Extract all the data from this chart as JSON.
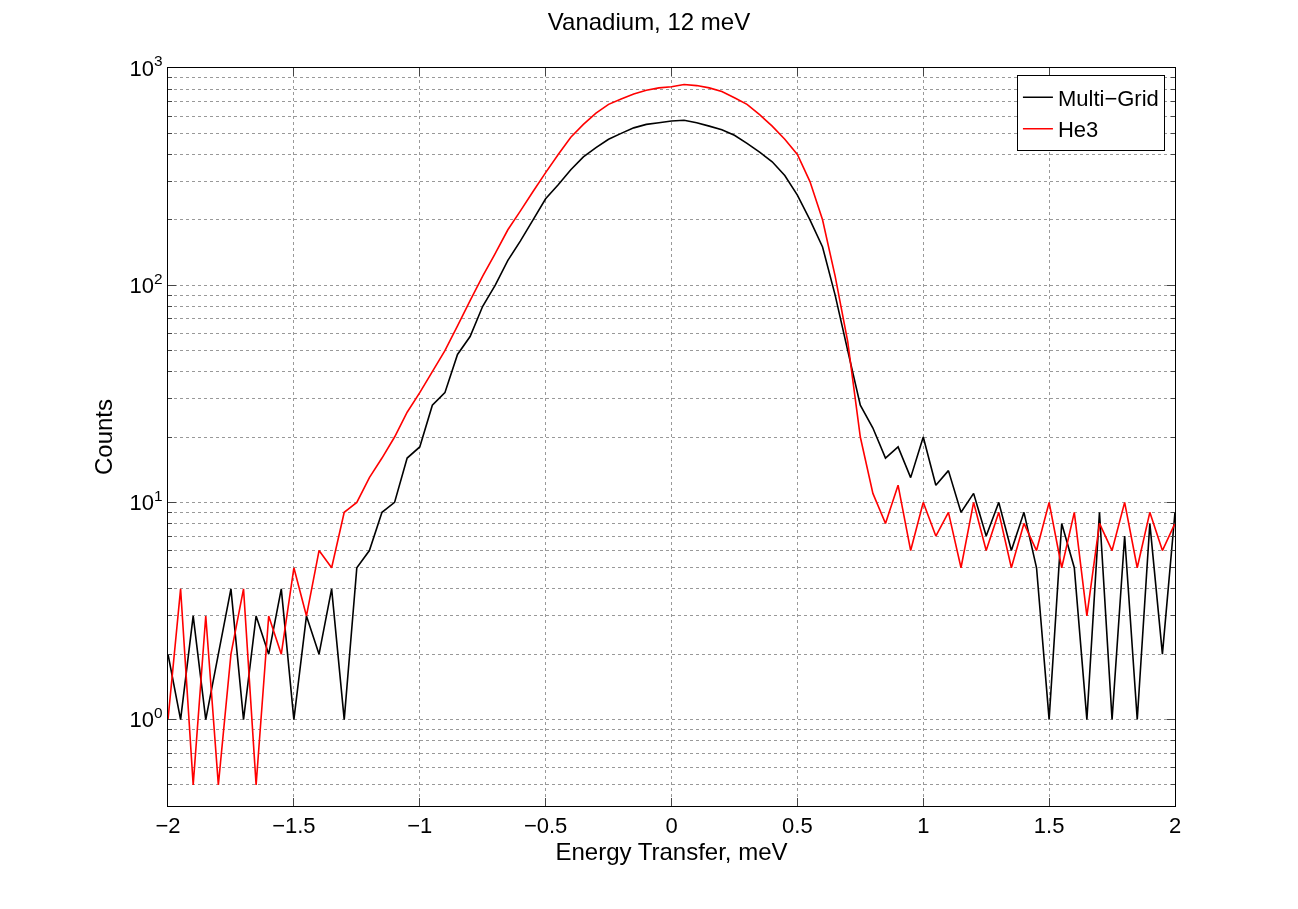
{
  "chart_data": {
    "type": "line",
    "title": "Vanadium, 12 meV",
    "xlabel": "Energy Transfer, meV",
    "ylabel": "Counts",
    "x": [
      -2.0,
      -1.95,
      -1.9,
      -1.85,
      -1.8,
      -1.75,
      -1.7,
      -1.65,
      -1.6,
      -1.55,
      -1.5,
      -1.45,
      -1.4,
      -1.35,
      -1.3,
      -1.25,
      -1.2,
      -1.15,
      -1.1,
      -1.05,
      -1.0,
      -0.95,
      -0.9,
      -0.85,
      -0.8,
      -0.75,
      -0.7,
      -0.65,
      -0.6,
      -0.55,
      -0.5,
      -0.45,
      -0.4,
      -0.35,
      -0.3,
      -0.25,
      -0.2,
      -0.15,
      -0.1,
      -0.05,
      0.0,
      0.05,
      0.1,
      0.15,
      0.2,
      0.25,
      0.3,
      0.35,
      0.4,
      0.45,
      0.5,
      0.55,
      0.6,
      0.65,
      0.7,
      0.75,
      0.8,
      0.85,
      0.9,
      0.95,
      1.0,
      1.05,
      1.1,
      1.15,
      1.2,
      1.25,
      1.3,
      1.35,
      1.4,
      1.45,
      1.5,
      1.55,
      1.6,
      1.65,
      1.7,
      1.75,
      1.8,
      1.85,
      1.9,
      1.95,
      2.0
    ],
    "series": [
      {
        "name": "Multi−Grid",
        "color": "#000000",
        "values": [
          2,
          1,
          3,
          1,
          2,
          4,
          1,
          3,
          2,
          4,
          1,
          3,
          2,
          4,
          1,
          5,
          6,
          9,
          10,
          16,
          18,
          28,
          32,
          48,
          58,
          80,
          100,
          130,
          160,
          200,
          250,
          290,
          340,
          390,
          430,
          470,
          500,
          530,
          550,
          560,
          570,
          575,
          560,
          540,
          520,
          490,
          450,
          410,
          370,
          320,
          260,
          200,
          150,
          90,
          50,
          28,
          22,
          16,
          18,
          13,
          20,
          12,
          14,
          9,
          11,
          7,
          10,
          6,
          9,
          5,
          1,
          8,
          5,
          1,
          9,
          1,
          7,
          1,
          8,
          2,
          9
        ]
      },
      {
        "name": "He3",
        "color": "#ff0000",
        "values": [
          1,
          4,
          0.5,
          3,
          0.5,
          2,
          4,
          0.5,
          3,
          2,
          5,
          3,
          6,
          5,
          9,
          10,
          13,
          16,
          20,
          26,
          32,
          40,
          50,
          65,
          85,
          110,
          140,
          180,
          220,
          270,
          330,
          400,
          480,
          550,
          620,
          680,
          720,
          760,
          790,
          810,
          820,
          840,
          830,
          810,
          780,
          730,
          680,
          610,
          540,
          470,
          400,
          300,
          200,
          110,
          55,
          20,
          11,
          8,
          12,
          6,
          10,
          7,
          9,
          5,
          10,
          6,
          9,
          5,
          8,
          6,
          10,
          5,
          9,
          3,
          8,
          6,
          10,
          5,
          9,
          6,
          8
        ]
      }
    ],
    "log": "y",
    "xlim": [
      -2,
      2
    ],
    "xticks": [
      {
        "value": -2,
        "label": "−2"
      },
      {
        "value": -1.5,
        "label": "−1.5"
      },
      {
        "value": -1,
        "label": "−1"
      },
      {
        "value": -0.5,
        "label": "−0.5"
      },
      0,
      0.5,
      1,
      1.5,
      2
    ],
    "ylim": [
      0.4,
      1000
    ],
    "yticks": [
      {
        "value": 1,
        "label": "10$^{0}$"
      },
      {
        "value": 10,
        "label": "10$^{1}$"
      },
      {
        "value": 100,
        "label": "10$^{2}$"
      },
      {
        "value": 1000,
        "label": "10$^{3}$"
      }
    ],
    "grid": true,
    "legend": "top right",
    "line_style": "solid",
    "marker": "none"
  }
}
